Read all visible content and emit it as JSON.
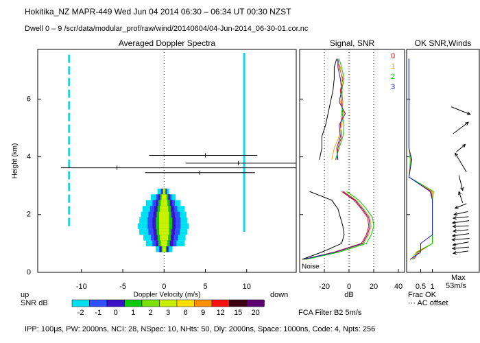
{
  "header": {
    "line1": "Hokitika_NZ   MAPR-449   Wed Jun 04 2014 06:30 – 06:34 UT 00:30 NZST",
    "line2": "Dwell  0 – 9   /scr/data/modular_prof/raw/wind/20140604/04-Jun-2014_06-30-01.cor.nc"
  },
  "footer": "IPP: 100μs,  PW: 2000ns,  NCI:  28,  NSpec: 10, NHts: 50,  Dly: 2000ns,  Space: 1000ns,  Code: 4,  Npts: 256",
  "chart_data": [
    {
      "type": "spectra",
      "title": "Averaged Doppler Spectra",
      "xlabel": "Doppler Velocity (m/s)",
      "ylabel": "Height (km)",
      "xlabel_left": "up",
      "xlabel_right": "down",
      "xlim": [
        -15.3,
        16
      ],
      "ylim": [
        0,
        7.72
      ],
      "xticks": [
        -10,
        -5,
        0,
        5,
        10
      ],
      "yticks": [
        0,
        2,
        4,
        6
      ],
      "ref_lines": [
        0
      ],
      "colorbar": {
        "title": "SNR dB",
        "levels": [
          -2,
          -1,
          0,
          1,
          2,
          3,
          6,
          9,
          12,
          15,
          20
        ],
        "colors": [
          "#00e0f0",
          "#2f50ff",
          "#3a10c8",
          "#10c810",
          "#7ce000",
          "#c8f000",
          "#ffe000",
          "#ff9000",
          "#ff1010",
          "#3a0010",
          "#5a0070"
        ]
      },
      "spectrum": [
        {
          "level": -2,
          "heights": [
            0.8,
            1.0,
            1.2,
            1.4,
            1.6,
            1.8,
            2.0,
            2.2,
            2.4,
            2.6,
            2.8
          ],
          "vmin": [
            -1,
            -2.2,
            -2.5,
            -3,
            -3.2,
            -3,
            -2.8,
            -2.6,
            -2.2,
            -1.6,
            -0.8
          ],
          "vmax": [
            1,
            2.5,
            2.6,
            2.8,
            3,
            2.8,
            2.7,
            2.5,
            2,
            1.4,
            0.6
          ]
        },
        {
          "level": -1,
          "heights": [
            0.8,
            1.0,
            1.2,
            1.4,
            1.6,
            1.8,
            2.0,
            2.2,
            2.4,
            2.6,
            2.8
          ],
          "vmin": [
            -0.6,
            -1.4,
            -1.6,
            -1.9,
            -2,
            -2,
            -1.9,
            -1.7,
            -1.4,
            -1,
            -0.4
          ],
          "vmax": [
            0.6,
            1.5,
            1.7,
            1.9,
            2,
            2,
            1.9,
            1.6,
            1.3,
            0.9,
            0.3
          ]
        },
        {
          "level": 0,
          "heights": [
            0.8,
            1.0,
            1.2,
            1.4,
            1.6,
            1.8,
            2.0,
            2.2,
            2.4,
            2.6,
            2.8
          ],
          "vmin": [
            -0.5,
            -1,
            -1.2,
            -1.3,
            -1.4,
            -1.4,
            -1.3,
            -1.2,
            -1,
            -0.7,
            -0.3
          ],
          "vmax": [
            0.5,
            1.1,
            1.2,
            1.3,
            1.4,
            1.4,
            1.3,
            1.2,
            1,
            0.7,
            0.3
          ]
        },
        {
          "level": 1,
          "heights": [
            0.8,
            1.0,
            1.2,
            1.4,
            1.6,
            1.8,
            2.0,
            2.2,
            2.4,
            2.6,
            2.8
          ],
          "vmin": [
            -0.3,
            -0.7,
            -0.8,
            -0.9,
            -1,
            -1,
            -0.9,
            -0.8,
            -0.7,
            -0.5,
            -0.2
          ],
          "vmax": [
            0.3,
            0.7,
            0.8,
            0.9,
            1,
            1,
            0.9,
            0.8,
            0.7,
            0.5,
            0.2
          ]
        },
        {
          "level": 3,
          "heights": [
            0.8,
            1.0,
            1.2,
            1.4,
            1.6,
            1.8,
            2.0,
            2.2,
            2.4,
            2.6,
            2.8
          ],
          "vmin": [
            -0.2,
            -0.4,
            -0.5,
            -0.6,
            -0.6,
            -0.6,
            -0.6,
            -0.5,
            -0.4,
            -0.3,
            -0.1
          ],
          "vmax": [
            0.2,
            0.4,
            0.5,
            0.6,
            0.6,
            0.6,
            0.6,
            0.5,
            0.4,
            0.3,
            0.1
          ]
        }
      ],
      "clutter": [
        {
          "velocity": -11.5,
          "heights": [
            1.6,
            7.6
          ]
        },
        {
          "velocity": 9.7,
          "heights": [
            1.4,
            7.6
          ]
        }
      ],
      "moments": {
        "heights": [
          4.05,
          3.78,
          3.62,
          3.45
        ],
        "mean": [
          5,
          9,
          -5.7,
          4.3
        ],
        "lo": [
          -1.8,
          2.6,
          -12.5,
          -2.3
        ],
        "hi": [
          11.3,
          16,
          16,
          11
        ]
      }
    },
    {
      "type": "profile",
      "title": "Signal, SNR",
      "xlabel": "dB",
      "annotation": "Noise",
      "filter_label": "FCA Filter B2  5m/s",
      "xlim": [
        -40,
        45
      ],
      "ylim": [
        0,
        7.72
      ],
      "xticks": [
        -20,
        0,
        20,
        40
      ],
      "yticks": [
        0,
        2,
        4,
        6
      ],
      "ref_lines": [
        -20,
        0,
        20
      ],
      "heights": [
        0.45,
        0.7,
        1.0,
        1.3,
        1.6,
        1.9,
        2.2,
        2.5,
        2.8,
        3.3,
        3.9,
        4.3,
        4.7,
        5.1,
        5.5,
        5.9,
        6.3,
        6.7,
        7.1,
        7.4
      ],
      "signal": {
        "color": "#000000",
        "values": [
          -38,
          -22,
          -6,
          -4,
          -5,
          -7,
          -9,
          -14,
          -32,
          null,
          -24,
          -22,
          -22,
          -19,
          -17,
          -15,
          -13,
          -12,
          -12,
          -10
        ]
      },
      "series": [
        {
          "name": "0",
          "color": "#ff0000",
          "values": [
            -37,
            -12,
            10,
            14,
            16,
            15,
            10,
            4,
            -6,
            null,
            -10,
            -9,
            -6,
            -7,
            -5,
            -6,
            -7,
            -5,
            -8,
            -9
          ]
        },
        {
          "name": "1",
          "color": "#ffa500",
          "values": [
            -36,
            -10,
            12,
            16,
            18,
            17,
            12,
            6,
            -4,
            null,
            -14,
            -12,
            -8,
            -6,
            -4,
            -7,
            -5,
            -6,
            -7,
            -10
          ]
        },
        {
          "name": "2",
          "color": "#00cc00",
          "values": [
            -35,
            -8,
            14,
            18,
            20,
            19,
            14,
            8,
            -2,
            null,
            -11,
            -8,
            -5,
            -4,
            -6,
            -5,
            -6,
            -4,
            -6,
            -8
          ]
        },
        {
          "name": "3",
          "color": "#2020c0",
          "values": [
            -37,
            -11,
            11,
            15,
            17,
            16,
            11,
            5,
            -5,
            null,
            -9,
            -10,
            -7,
            -8,
            -3,
            -8,
            -6,
            -7,
            -9,
            -9
          ]
        }
      ]
    },
    {
      "type": "frac_winds",
      "title": "OK SNR,Winds",
      "xlabel": "Frac OK",
      "note": "··· AC offset",
      "max_label": "Max",
      "max_speed_label": "53m/s",
      "xlim": [
        -0.1,
        3
      ],
      "ylim": [
        0,
        7.72
      ],
      "xticks": [
        0.5,
        1
      ],
      "yticks": [
        0,
        2,
        4,
        6
      ],
      "heights": [
        0.45,
        0.7,
        1.0,
        1.3,
        1.6,
        1.9,
        2.2,
        2.5,
        2.8,
        3.3,
        3.9,
        4.3,
        4.7,
        5.1,
        5.5,
        5.9,
        6.3,
        6.7,
        7.1,
        7.4
      ],
      "series": [
        {
          "name": "0",
          "color": "#ff0000",
          "values": [
            0.2,
            0.4,
            1,
            1,
            1,
            1,
            1,
            1,
            0.95,
            0,
            0.1,
            0,
            0,
            0,
            0,
            0,
            0,
            0,
            0,
            0
          ]
        },
        {
          "name": "1",
          "color": "#ffa500",
          "values": [
            0.1,
            0.3,
            1,
            1,
            1,
            1,
            1,
            1,
            1,
            0,
            0.05,
            0,
            0,
            0,
            0,
            0,
            0,
            0,
            0,
            0
          ]
        },
        {
          "name": "2",
          "color": "#00cc00",
          "values": [
            0.15,
            0.35,
            1,
            1,
            1,
            1,
            1,
            1,
            1.05,
            0,
            0.08,
            0,
            0,
            0,
            0,
            0,
            0,
            0,
            0,
            0
          ]
        },
        {
          "name": "3",
          "color": "#2020c0",
          "values": [
            0.05,
            0.5,
            0.5,
            1,
            1,
            1,
            1,
            1,
            0.9,
            0,
            0.12,
            0,
            0,
            0,
            0,
            0,
            0,
            0,
            0,
            0
          ]
        }
      ],
      "winds": {
        "heights": [
          0.7,
          0.85,
          1.0,
          1.15,
          1.3,
          1.45,
          1.6,
          1.75,
          1.9,
          2.05,
          2.3,
          2.6,
          3.1,
          3.8,
          4.3,
          5.0,
          5.6
        ],
        "u": [
          -20,
          -22,
          -21,
          -23,
          -22,
          -20,
          -21,
          -22,
          -20,
          -18,
          -15,
          -5,
          5,
          -15,
          12,
          20,
          25
        ],
        "v": [
          -3,
          -2,
          -4,
          -2,
          -3,
          -2,
          -1,
          -3,
          -2,
          -4,
          -6,
          15,
          -20,
          25,
          10,
          15,
          -10
        ]
      }
    }
  ]
}
